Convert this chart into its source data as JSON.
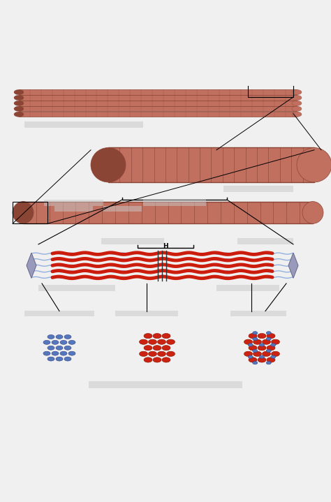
{
  "bg_color": "#f0f0f0",
  "mc": "#c17060",
  "md": "#8b4535",
  "ms": "#6b3020",
  "ac": "#cc1100",
  "tc": "#88aadd",
  "zc": "#333333",
  "lb": "#c8c8c8",
  "dot_blue": "#5577bb",
  "dot_red": "#cc2211",
  "fig_w": 4.74,
  "fig_h": 7.19,
  "dpi": 100
}
